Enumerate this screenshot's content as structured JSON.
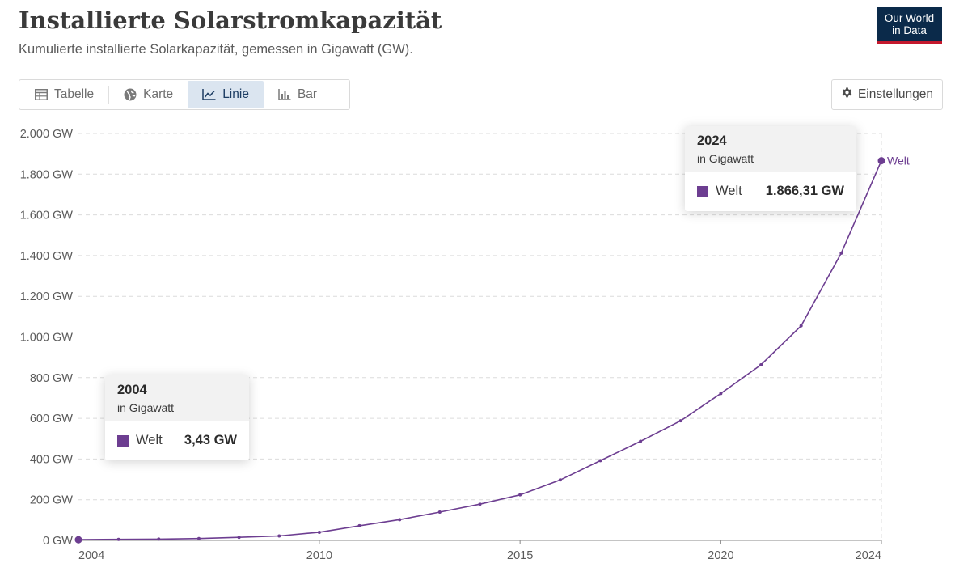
{
  "header": {
    "title": "Installierte Solarstromkapazität",
    "subtitle": "Kumulierte installierte Solarkapazität, gemessen in Gigawatt (GW)."
  },
  "logo": {
    "line1": "Our World",
    "line2": "in Data"
  },
  "tabs": [
    {
      "label": "Tabelle",
      "icon": "table-icon",
      "active": false
    },
    {
      "label": "Karte",
      "icon": "globe-icon",
      "active": false
    },
    {
      "label": "Linie",
      "icon": "line-chart-icon",
      "active": true
    },
    {
      "label": "Bar",
      "icon": "bar-chart-icon",
      "active": false
    }
  ],
  "settings": {
    "label": "Einstellungen",
    "icon": "gear-icon"
  },
  "colors": {
    "series": "#6d3e91",
    "active_tab_bg": "#dbe5f0",
    "logo_bg": "#0b2a4a",
    "logo_accent": "#c4182d"
  },
  "tooltips": [
    {
      "year": "2004",
      "unit": "in Gigawatt",
      "series": "Welt",
      "value": "3,43 GW"
    },
    {
      "year": "2024",
      "unit": "in Gigawatt",
      "series": "Welt",
      "value": "1.866,31 GW"
    }
  ],
  "chart_data": {
    "type": "line",
    "title": "Installierte Solarstromkapazität",
    "subtitle": "Kumulierte installierte Solarkapazität, gemessen in Gigawatt (GW).",
    "ylim": [
      0,
      2000
    ],
    "xlim": [
      2004,
      2024
    ],
    "y_ticks": [
      0,
      200,
      400,
      600,
      800,
      1000,
      1200,
      1400,
      1600,
      1800,
      2000
    ],
    "y_tick_labels": [
      "0 GW",
      "200 GW",
      "400 GW",
      "600 GW",
      "800 GW",
      "1.000 GW",
      "1.200 GW",
      "1.400 GW",
      "1.600 GW",
      "1.800 GW",
      "2.000 GW"
    ],
    "x_ticks": [
      2004,
      2010,
      2015,
      2020,
      2024
    ],
    "x_tick_labels": [
      "2004",
      "2010",
      "2015",
      "2020",
      "2024"
    ],
    "grid": "horizontal dashed",
    "series": [
      {
        "name": "Welt",
        "color": "#6d3e91",
        "x": [
          2004,
          2005,
          2006,
          2007,
          2008,
          2009,
          2010,
          2011,
          2012,
          2013,
          2014,
          2015,
          2016,
          2017,
          2018,
          2019,
          2020,
          2021,
          2022,
          2023,
          2024
        ],
        "y": [
          3.43,
          5,
          6.5,
          9,
          15,
          22,
          40,
          72,
          102,
          139,
          178,
          224,
          297,
          392,
          487,
          588,
          722,
          863,
          1055,
          1412,
          1866.31
        ]
      }
    ]
  }
}
